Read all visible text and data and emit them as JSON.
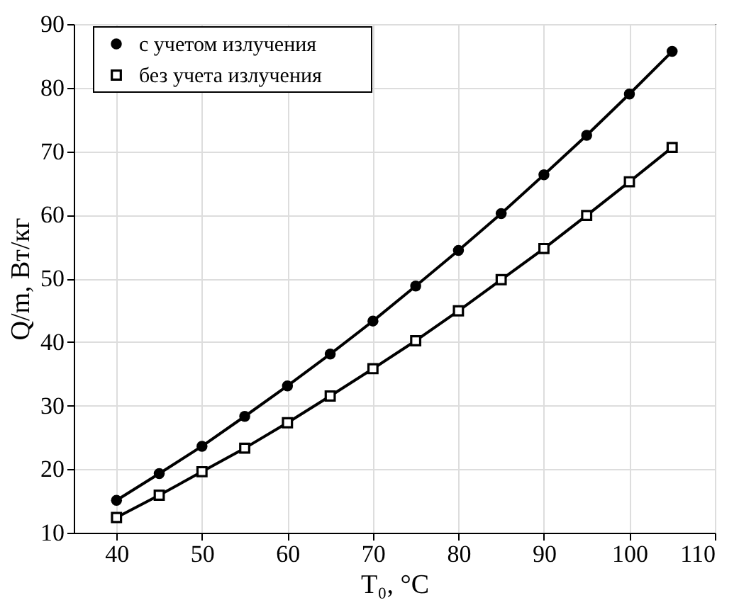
{
  "chart_data": {
    "type": "line",
    "xlabel": "T₀, °C",
    "ylabel": "Q/m, Вт/кг",
    "x": [
      40,
      45,
      50,
      55,
      60,
      65,
      70,
      75,
      80,
      85,
      90,
      95,
      100,
      105
    ],
    "series": [
      {
        "name": "с учетом излучения",
        "color": "#000000",
        "marker": "circle",
        "values": [
          15.1,
          19.3,
          23.6,
          28.3,
          33.1,
          38.1,
          43.3,
          48.8,
          54.4,
          60.2,
          66.3,
          72.5,
          79.0,
          85.7
        ]
      },
      {
        "name": "без учета излучения",
        "color": "#000000",
        "marker": "square",
        "values": [
          12.4,
          15.9,
          19.6,
          23.3,
          27.3,
          31.5,
          35.8,
          40.2,
          44.9,
          49.8,
          54.7,
          59.9,
          65.2,
          70.6
        ]
      }
    ],
    "xlim": [
      35,
      110
    ],
    "xticks": [
      40,
      50,
      60,
      70,
      80,
      90,
      100,
      110
    ],
    "ylim": [
      10,
      90
    ],
    "yticks": [
      10,
      20,
      30,
      40,
      50,
      60,
      70,
      80,
      90
    ],
    "grid": true,
    "legend": "top left",
    "line_style": "solid"
  }
}
